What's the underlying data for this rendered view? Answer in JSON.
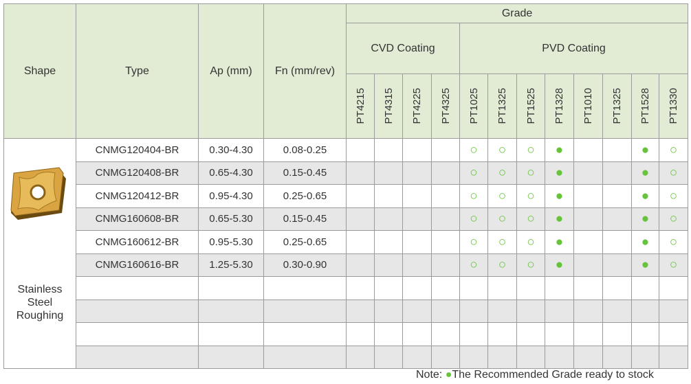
{
  "header": {
    "shape": "Shape",
    "type": "Type",
    "ap": "Ap (mm)",
    "fn": "Fn (mm/rev)",
    "grade": "Grade",
    "groups": [
      {
        "label": "CVD Coating",
        "grades": [
          "PT4215",
          "PT4315",
          "PT4225",
          "PT4325"
        ]
      },
      {
        "label": "PVD Coating",
        "grades": [
          "PT1025",
          "PT1325",
          "PT1525",
          "PT1328",
          "PT1010",
          "PT1325",
          "PT1528",
          "PT1330"
        ]
      }
    ]
  },
  "shape_label": "Stainless Steel Roughing",
  "rows": [
    {
      "type": "CNMG120404-BR",
      "ap": "0.30-4.30",
      "fn": "0.08-0.25",
      "grades": [
        null,
        null,
        null,
        null,
        "○",
        "○",
        "○",
        "●",
        null,
        null,
        "●",
        "○"
      ]
    },
    {
      "type": "CNMG120408-BR",
      "ap": "0.65-4.30",
      "fn": "0.15-0.45",
      "grades": [
        null,
        null,
        null,
        null,
        "○",
        "○",
        "○",
        "●",
        null,
        null,
        "●",
        "○"
      ]
    },
    {
      "type": "CNMG120412-BR",
      "ap": "0.95-4.30",
      "fn": "0.25-0.65",
      "grades": [
        null,
        null,
        null,
        null,
        "○",
        "○",
        "○",
        "●",
        null,
        null,
        "●",
        "○"
      ]
    },
    {
      "type": "CNMG160608-BR",
      "ap": "0.65-5.30",
      "fn": "0.15-0.45",
      "grades": [
        null,
        null,
        null,
        null,
        "○",
        "○",
        "○",
        "●",
        null,
        null,
        "●",
        "○"
      ]
    },
    {
      "type": "CNMG160612-BR",
      "ap": "0.95-5.30",
      "fn": "0.25-0.65",
      "grades": [
        null,
        null,
        null,
        null,
        "○",
        "○",
        "○",
        "●",
        null,
        null,
        "●",
        "○"
      ]
    },
    {
      "type": "CNMG160616-BR",
      "ap": "1.25-5.30",
      "fn": "0.30-0.90",
      "grades": [
        null,
        null,
        null,
        null,
        "○",
        "○",
        "○",
        "●",
        null,
        null,
        "●",
        "○"
      ]
    }
  ],
  "note": {
    "label": "Note:",
    "symbol": "●",
    "text": "The Recommended Grade ready to stock"
  }
}
